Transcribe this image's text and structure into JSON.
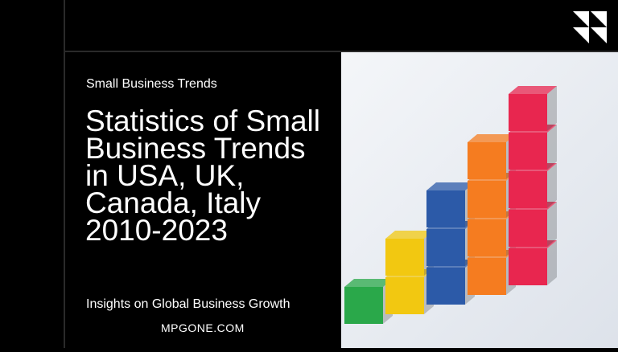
{
  "kicker": "Small Business Trends",
  "title": "Statistics of Small Business Trends in USA, UK, Canada, Italy 2010-2023",
  "subtitle": "Insights on Global Business Growth",
  "site": "MPGONE.COM",
  "logo_icon": "triangles-logo-icon",
  "colors": {
    "background": "#000000",
    "text": "#ffffff",
    "green": "#2aa84a",
    "yellow": "#f2c811",
    "blue": "#2c5aa8",
    "orange": "#f57c20",
    "red": "#e8264f"
  }
}
